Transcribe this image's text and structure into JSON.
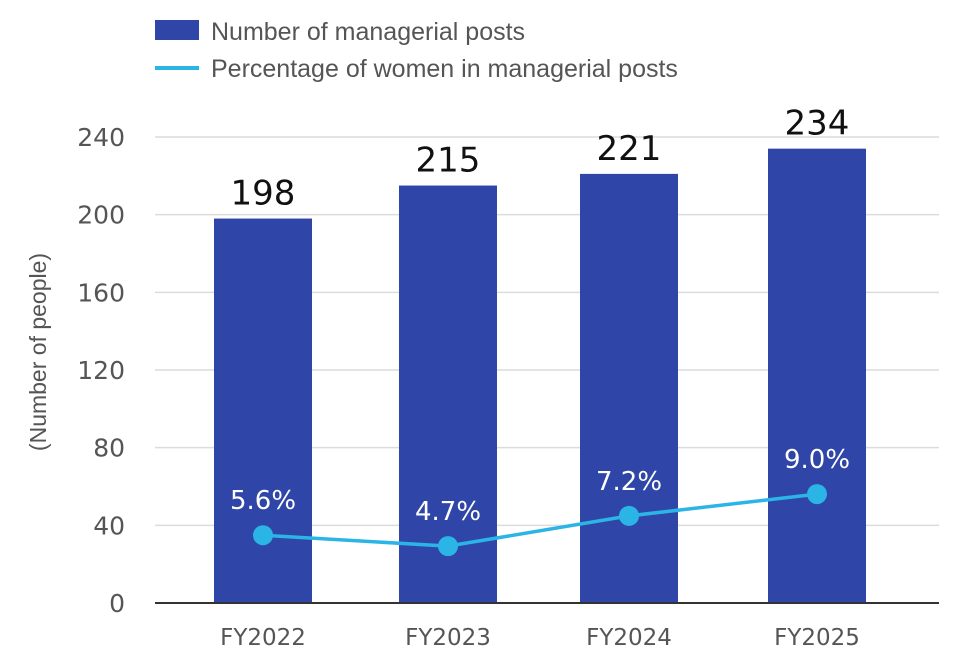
{
  "chart_data": {
    "type": "bar",
    "categories": [
      "FY2022",
      "FY2023",
      "FY2024",
      "FY2025"
    ],
    "series": [
      {
        "name": "Number of managerial posts",
        "type": "bar",
        "values": [
          198,
          215,
          221,
          234
        ],
        "labels": [
          "198",
          "215",
          "221",
          "234"
        ],
        "color": "#2f46a8"
      },
      {
        "name": "Percentage of women in managerial posts",
        "type": "line",
        "values": [
          5.6,
          4.7,
          7.2,
          9.0
        ],
        "labels": [
          "5.6%",
          "4.7%",
          "7.2%",
          "9.0%"
        ],
        "color": "#2bb5e6"
      }
    ],
    "ylabel": "(Number of people)",
    "ylim": [
      0,
      240
    ],
    "yticks": [
      "0",
      "40",
      "80",
      "120",
      "160",
      "200",
      "240"
    ],
    "grid": true,
    "legend": "top-left"
  }
}
